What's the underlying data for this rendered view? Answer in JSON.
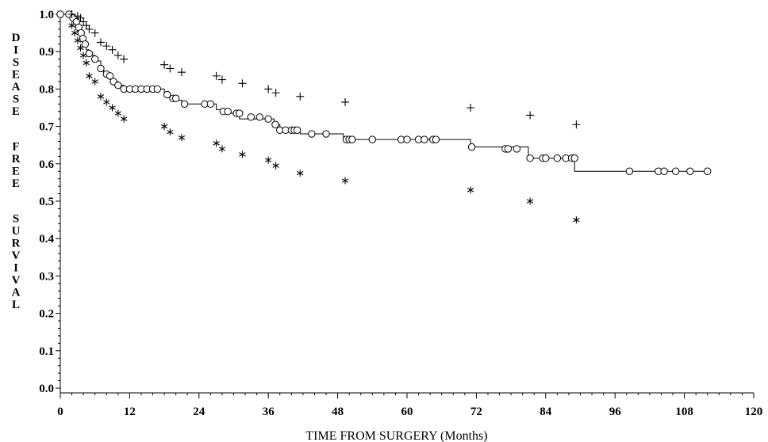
{
  "chart_data": {
    "type": "scatter",
    "title": "",
    "xlabel": "TIME FROM SURGERY (Months)",
    "ylabel": "DISEASE FREE SURVIVAL",
    "xlim": [
      0,
      120
    ],
    "ylim": [
      0,
      1.0
    ],
    "xticks": [
      0,
      12,
      24,
      36,
      48,
      60,
      72,
      84,
      96,
      108,
      120
    ],
    "yticks": [
      0.0,
      0.1,
      0.2,
      0.3,
      0.4,
      0.5,
      0.6,
      0.7,
      0.8,
      0.9,
      1.0
    ],
    "ytick_labels": [
      "0.0",
      "0.1",
      "0.2",
      "0.3",
      "0.4",
      "0.5",
      "0.6",
      "0.7",
      "0.8",
      "0.9",
      "1.0"
    ],
    "legend": "none",
    "grid": false,
    "series": [
      {
        "marker": "line+circle",
        "step": [
          [
            0,
            1.0
          ],
          [
            2,
            0.99
          ],
          [
            2.5,
            0.98
          ],
          [
            3,
            0.965
          ],
          [
            3.3,
            0.95
          ],
          [
            3.6,
            0.935
          ],
          [
            4,
            0.92
          ],
          [
            4.5,
            0.905
          ],
          [
            5,
            0.89
          ],
          [
            6,
            0.875
          ],
          [
            7,
            0.855
          ],
          [
            7.5,
            0.845
          ],
          [
            8,
            0.835
          ],
          [
            9,
            0.82
          ],
          [
            10,
            0.81
          ],
          [
            11,
            0.8
          ],
          [
            18,
            0.785
          ],
          [
            19,
            0.77
          ],
          [
            21,
            0.76
          ],
          [
            27,
            0.745
          ],
          [
            28,
            0.735
          ],
          [
            31,
            0.72
          ],
          [
            37,
            0.705
          ],
          [
            38,
            0.69
          ],
          [
            41.5,
            0.68
          ],
          [
            49,
            0.665
          ],
          [
            71,
            0.645
          ],
          [
            81,
            0.615
          ],
          [
            89,
            0.58
          ],
          [
            112,
            0.58
          ]
        ],
        "censored": [
          [
            0,
            1.0
          ],
          [
            1.5,
            1.0
          ],
          [
            2.2,
            0.99
          ],
          [
            2.8,
            0.98
          ],
          [
            3.2,
            0.965
          ],
          [
            3.6,
            0.95
          ],
          [
            3.9,
            0.935
          ],
          [
            4.3,
            0.92
          ],
          [
            5,
            0.895
          ],
          [
            6,
            0.88
          ],
          [
            7,
            0.855
          ],
          [
            8,
            0.84
          ],
          [
            8.6,
            0.835
          ],
          [
            9.2,
            0.82
          ],
          [
            10,
            0.81
          ],
          [
            11,
            0.8
          ],
          [
            12,
            0.8
          ],
          [
            13,
            0.8
          ],
          [
            14,
            0.8
          ],
          [
            15,
            0.8
          ],
          [
            16,
            0.8
          ],
          [
            16.8,
            0.8
          ],
          [
            18.5,
            0.785
          ],
          [
            19.5,
            0.775
          ],
          [
            20,
            0.775
          ],
          [
            21.5,
            0.76
          ],
          [
            25,
            0.76
          ],
          [
            26,
            0.76
          ],
          [
            28.2,
            0.74
          ],
          [
            29,
            0.74
          ],
          [
            30.5,
            0.735
          ],
          [
            31,
            0.735
          ],
          [
            33,
            0.725
          ],
          [
            34.5,
            0.725
          ],
          [
            36,
            0.72
          ],
          [
            37.2,
            0.705
          ],
          [
            38,
            0.69
          ],
          [
            39,
            0.69
          ],
          [
            40,
            0.69
          ],
          [
            40.5,
            0.69
          ],
          [
            41,
            0.69
          ],
          [
            43.5,
            0.68
          ],
          [
            46,
            0.68
          ],
          [
            49.5,
            0.665
          ],
          [
            50,
            0.665
          ],
          [
            50.5,
            0.665
          ],
          [
            54,
            0.665
          ],
          [
            59,
            0.665
          ],
          [
            60,
            0.665
          ],
          [
            62,
            0.665
          ],
          [
            63,
            0.665
          ],
          [
            64.5,
            0.665
          ],
          [
            65,
            0.665
          ],
          [
            71.2,
            0.645
          ],
          [
            77,
            0.64
          ],
          [
            77.5,
            0.64
          ],
          [
            79,
            0.64
          ],
          [
            81.3,
            0.615
          ],
          [
            83.5,
            0.615
          ],
          [
            84,
            0.615
          ],
          [
            86,
            0.615
          ],
          [
            87.5,
            0.615
          ],
          [
            88.5,
            0.615
          ],
          [
            89,
            0.615
          ],
          [
            98.5,
            0.58
          ],
          [
            103.5,
            0.58
          ],
          [
            104.5,
            0.58
          ],
          [
            106.5,
            0.58
          ],
          [
            109,
            0.58
          ],
          [
            112,
            0.58
          ]
        ]
      },
      {
        "marker": "plus",
        "points": [
          [
            2,
            1.0
          ],
          [
            3,
            0.995
          ],
          [
            3.5,
            0.99
          ],
          [
            4,
            0.98
          ],
          [
            4.5,
            0.97
          ],
          [
            5,
            0.96
          ],
          [
            6,
            0.95
          ],
          [
            7,
            0.925
          ],
          [
            8,
            0.915
          ],
          [
            9,
            0.905
          ],
          [
            10,
            0.89
          ],
          [
            11,
            0.88
          ],
          [
            18,
            0.865
          ],
          [
            19,
            0.855
          ],
          [
            21,
            0.845
          ],
          [
            27,
            0.835
          ],
          [
            28,
            0.825
          ],
          [
            31.5,
            0.815
          ],
          [
            36,
            0.8
          ],
          [
            37.3,
            0.79
          ],
          [
            41.5,
            0.78
          ],
          [
            49.3,
            0.765
          ],
          [
            71,
            0.75
          ],
          [
            81.3,
            0.73
          ],
          [
            89.3,
            0.705
          ]
        ]
      },
      {
        "marker": "asterisk",
        "points": [
          [
            2,
            0.97
          ],
          [
            2.5,
            0.95
          ],
          [
            3,
            0.93
          ],
          [
            3.5,
            0.91
          ],
          [
            4,
            0.89
          ],
          [
            4.5,
            0.87
          ],
          [
            5,
            0.835
          ],
          [
            6,
            0.82
          ],
          [
            7,
            0.78
          ],
          [
            8,
            0.765
          ],
          [
            9,
            0.75
          ],
          [
            10,
            0.735
          ],
          [
            11,
            0.72
          ],
          [
            18,
            0.7
          ],
          [
            19,
            0.685
          ],
          [
            21,
            0.67
          ],
          [
            27,
            0.655
          ],
          [
            28,
            0.64
          ],
          [
            31.5,
            0.625
          ],
          [
            36,
            0.61
          ],
          [
            37.3,
            0.595
          ],
          [
            41.5,
            0.575
          ],
          [
            49.3,
            0.555
          ],
          [
            71,
            0.53
          ],
          [
            81.3,
            0.5
          ],
          [
            89.3,
            0.45
          ]
        ]
      }
    ]
  }
}
